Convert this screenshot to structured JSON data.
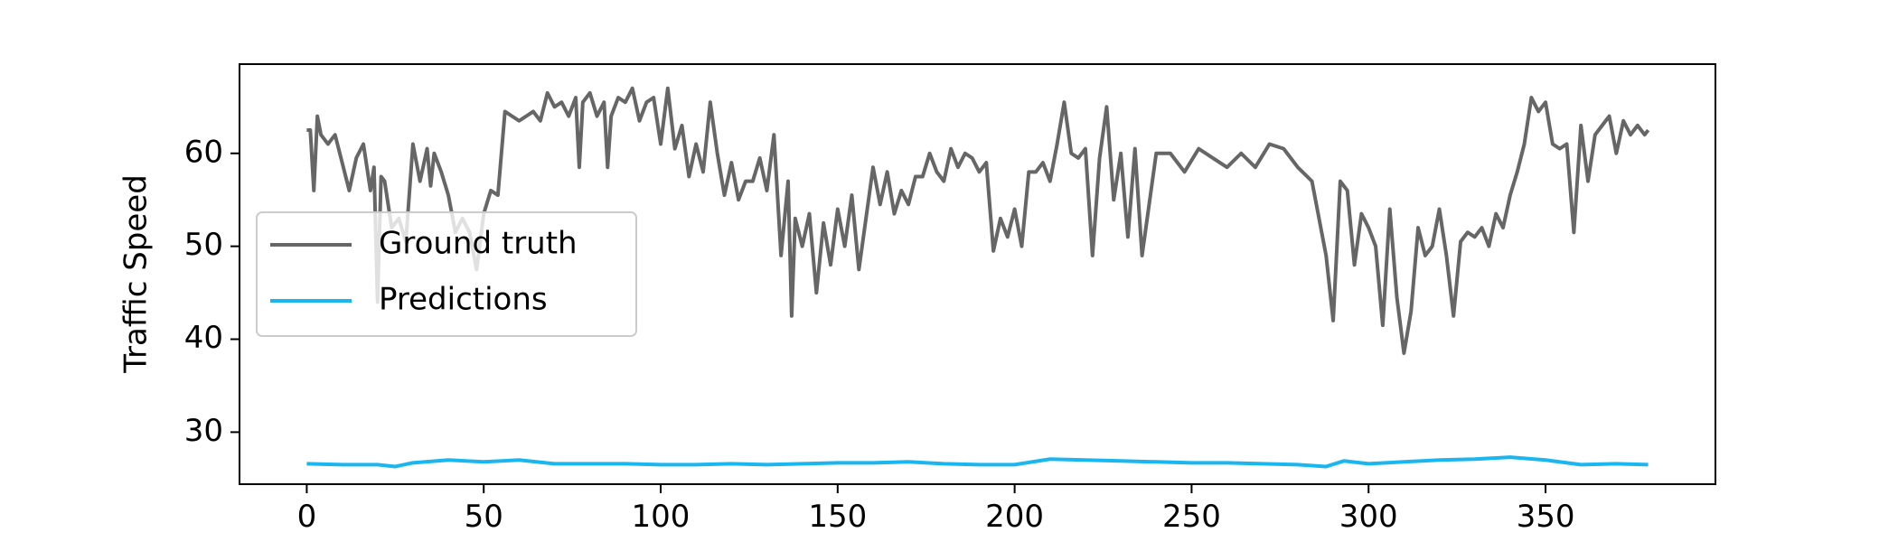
{
  "chart_data": {
    "type": "line",
    "ylabel": "Traffic Speed",
    "xlim": [
      -19,
      398
    ],
    "ylim": [
      24.4,
      69.6
    ],
    "xticks": [
      0,
      50,
      100,
      150,
      200,
      250,
      300,
      350
    ],
    "yticks": [
      30,
      40,
      50,
      60
    ],
    "legend": "center left",
    "series": [
      {
        "name": "Ground truth",
        "color": "#666666",
        "x": [
          0,
          1,
          2,
          3,
          4,
          6,
          8,
          10,
          12,
          14,
          16,
          18,
          19,
          20,
          21,
          22,
          24,
          26,
          28,
          30,
          32,
          34,
          35,
          36,
          38,
          40,
          42,
          44,
          46,
          48,
          50,
          52,
          54,
          56,
          58,
          60,
          62,
          64,
          66,
          68,
          70,
          72,
          74,
          76,
          77,
          78,
          80,
          82,
          84,
          85,
          86,
          88,
          90,
          92,
          94,
          96,
          98,
          100,
          102,
          104,
          106,
          108,
          110,
          112,
          114,
          116,
          118,
          120,
          122,
          124,
          126,
          128,
          130,
          132,
          134,
          136,
          137,
          138,
          140,
          142,
          144,
          146,
          148,
          150,
          152,
          154,
          156,
          158,
          160,
          162,
          164,
          166,
          168,
          170,
          172,
          174,
          176,
          178,
          180,
          182,
          184,
          186,
          188,
          190,
          192,
          194,
          196,
          198,
          200,
          202,
          204,
          206,
          208,
          210,
          212,
          214,
          216,
          218,
          220,
          222,
          224,
          226,
          228,
          230,
          232,
          234,
          236,
          240,
          244,
          248,
          252,
          256,
          260,
          264,
          268,
          272,
          276,
          280,
          284,
          286,
          288,
          290,
          292,
          294,
          296,
          298,
          300,
          302,
          304,
          306,
          308,
          310,
          312,
          314,
          316,
          318,
          320,
          322,
          324,
          326,
          328,
          330,
          332,
          334,
          336,
          338,
          340,
          342,
          344,
          346,
          348,
          350,
          352,
          354,
          356,
          358,
          360,
          362,
          364,
          366,
          368,
          370,
          372,
          374,
          376,
          378,
          379
        ],
        "values": [
          62.5,
          62.5,
          56,
          64,
          62,
          61,
          62,
          59,
          56,
          59.5,
          61,
          56,
          58.5,
          44,
          57.5,
          57,
          52,
          53,
          50.5,
          61,
          57,
          60.5,
          56.5,
          60,
          58,
          55.5,
          51.5,
          53,
          51.5,
          47.5,
          53.5,
          56,
          55.5,
          64.5,
          64,
          63.5,
          64,
          64.5,
          63.5,
          66.5,
          65,
          65.5,
          64,
          66,
          58.5,
          65.5,
          66.5,
          64,
          65.5,
          58.5,
          64,
          66,
          65.5,
          67,
          63.5,
          65.5,
          66,
          61,
          67,
          60.5,
          63,
          57.5,
          61,
          58,
          65.5,
          60,
          55.5,
          59,
          55,
          57,
          57,
          59.5,
          56,
          62,
          49,
          57,
          42.5,
          53,
          50,
          53.5,
          45,
          52.5,
          48,
          54,
          50,
          55.5,
          47.5,
          53,
          58.5,
          54.5,
          58,
          53.5,
          56,
          54.5,
          57.5,
          57.5,
          60,
          58,
          57,
          60.5,
          58.5,
          60,
          59.5,
          58,
          59,
          49.5,
          53,
          51,
          54,
          50,
          58,
          58,
          59,
          57,
          61,
          65.5,
          60,
          59.5,
          60.5,
          49,
          59.5,
          65,
          55,
          60,
          51,
          60.5,
          49,
          60,
          60,
          58,
          60.5,
          59.5,
          58.5,
          60,
          58.5,
          61,
          60.5,
          58.5,
          57,
          53,
          49,
          42,
          57,
          56,
          48,
          53.5,
          52,
          50,
          41.5,
          54,
          44.5,
          38.5,
          43,
          52,
          49,
          50,
          54,
          49,
          42.5,
          50.5,
          51.5,
          51,
          52,
          50,
          53.5,
          52,
          55.5,
          58,
          61,
          66,
          64.5,
          65.5,
          61,
          60.5,
          61,
          51.5,
          63,
          57,
          62,
          63,
          64,
          60,
          63.5,
          62,
          63,
          62,
          62.5
        ]
      },
      {
        "name": "Predictions",
        "color": "#1ab6f0",
        "x": [
          0,
          10,
          20,
          25,
          30,
          40,
          50,
          60,
          70,
          80,
          90,
          100,
          110,
          120,
          130,
          140,
          150,
          160,
          170,
          180,
          190,
          200,
          210,
          220,
          230,
          240,
          250,
          260,
          270,
          280,
          288,
          293,
          300,
          310,
          320,
          330,
          340,
          350,
          360,
          370,
          379
        ],
        "values": [
          26.6,
          26.5,
          26.5,
          26.3,
          26.7,
          27.0,
          26.8,
          27.0,
          26.6,
          26.6,
          26.6,
          26.5,
          26.5,
          26.6,
          26.5,
          26.6,
          26.7,
          26.7,
          26.8,
          26.6,
          26.5,
          26.5,
          27.1,
          27.0,
          26.9,
          26.8,
          26.7,
          26.7,
          26.6,
          26.5,
          26.3,
          26.9,
          26.6,
          26.8,
          27.0,
          27.1,
          27.3,
          27.0,
          26.5,
          26.6,
          26.5
        ]
      }
    ]
  }
}
